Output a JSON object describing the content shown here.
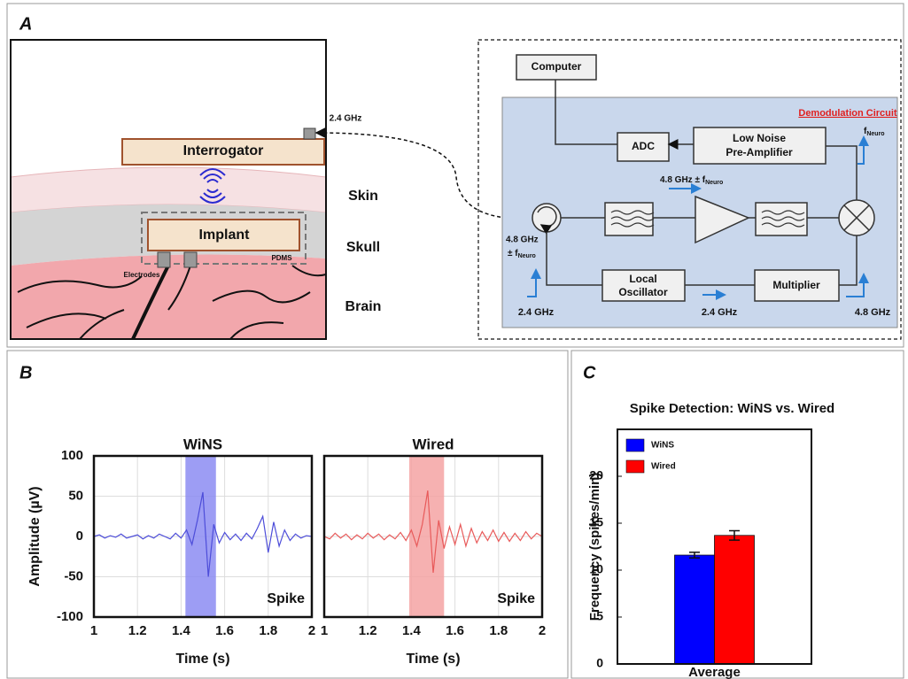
{
  "panels": [
    "A",
    "B",
    "C"
  ],
  "diagram": {
    "anatomy": {
      "interrogator": "Interrogator",
      "skin": "Skin",
      "skull": "Skull",
      "brain": "Brain",
      "implant": "Implant",
      "pdms": "PDMS",
      "electrodes": "Electrodes",
      "link_freq": "2.4 GHz"
    },
    "circuit": {
      "computer": "Computer",
      "title": "Demodulation Circuit",
      "adc": "ADC",
      "lna": [
        "Low Noise",
        "Pre-Amplifier"
      ],
      "local_oscillator": [
        "Local",
        "Oscillator"
      ],
      "multiplier": "Multiplier",
      "f_neuro": {
        "main": "f",
        "sub": "Neuro"
      },
      "mid_freq": {
        "main": "4.8 GHz ± f",
        "sub": "Neuro"
      },
      "port_freq": {
        "line1": "4.8 GHz",
        "main": "± f",
        "sub": "Neuro"
      },
      "lo_in": "2.4 GHz",
      "lo_out": "2.4 GHz",
      "mult_out": "4.8 GHz"
    }
  },
  "chart_data": [
    {
      "type": "line",
      "title": "WiNS",
      "ylabel": "Amplitude (µV)",
      "xlabel": "Time (s)",
      "annotation": "Spike",
      "x": [
        1,
        1.025,
        1.05,
        1.075,
        1.1,
        1.125,
        1.15,
        1.175,
        1.2,
        1.225,
        1.25,
        1.275,
        1.3,
        1.325,
        1.35,
        1.375,
        1.4,
        1.425,
        1.45,
        1.475,
        1.5,
        1.525,
        1.55,
        1.575,
        1.6,
        1.625,
        1.65,
        1.675,
        1.7,
        1.725,
        1.75,
        1.775,
        1.8,
        1.825,
        1.85,
        1.875,
        1.9,
        1.925,
        1.95,
        1.975,
        2
      ],
      "series": [
        {
          "name": "WiNS",
          "color": "#4d4dd9",
          "values": [
            0,
            2,
            -2,
            1,
            -1,
            3,
            -2,
            0,
            2,
            -3,
            1,
            -2,
            3,
            0,
            -3,
            4,
            -2,
            8,
            -10,
            20,
            55,
            -50,
            15,
            -8,
            5,
            -4,
            3,
            -5,
            4,
            -3,
            10,
            25,
            -20,
            18,
            -12,
            8,
            -5,
            3,
            -2,
            1,
            0
          ]
        }
      ],
      "highlight": [
        1.42,
        1.56
      ],
      "highlight_color": "#8c8cf2",
      "xlim": [
        1,
        2
      ],
      "xticks": [
        1,
        1.2,
        1.4,
        1.6,
        1.8,
        2
      ],
      "ylim": [
        -100,
        100
      ],
      "yticks": [
        -100,
        -50,
        0,
        50,
        100
      ],
      "show_ytick_labels": true,
      "grid": true
    },
    {
      "type": "line",
      "title": "Wired",
      "xlabel": "Time (s)",
      "annotation": "Spike",
      "x": [
        1,
        1.025,
        1.05,
        1.075,
        1.1,
        1.125,
        1.15,
        1.175,
        1.2,
        1.225,
        1.25,
        1.275,
        1.3,
        1.325,
        1.35,
        1.375,
        1.4,
        1.425,
        1.45,
        1.475,
        1.5,
        1.525,
        1.55,
        1.575,
        1.6,
        1.625,
        1.65,
        1.675,
        1.7,
        1.725,
        1.75,
        1.775,
        1.8,
        1.825,
        1.85,
        1.875,
        1.9,
        1.925,
        1.95,
        1.975,
        2
      ],
      "series": [
        {
          "name": "Wired",
          "color": "#e85a5a",
          "values": [
            0,
            -3,
            4,
            -2,
            3,
            -4,
            2,
            -3,
            4,
            -2,
            3,
            -4,
            2,
            -3,
            5,
            -5,
            8,
            -12,
            15,
            57,
            -45,
            20,
            -15,
            12,
            -10,
            15,
            -12,
            10,
            -8,
            6,
            -5,
            8,
            -6,
            5,
            -6,
            4,
            -5,
            6,
            -3,
            4,
            0
          ]
        }
      ],
      "highlight": [
        1.39,
        1.55
      ],
      "highlight_color": "#f4a3a3",
      "xlim": [
        1,
        2
      ],
      "xticks": [
        1,
        1.2,
        1.4,
        1.6,
        1.8,
        2
      ],
      "ylim": [
        -100,
        100
      ],
      "yticks": [
        -100,
        -50,
        0,
        50,
        100
      ],
      "show_ytick_labels": false,
      "grid": true
    },
    {
      "type": "bar",
      "title": "Spike Detection: WiNS vs. Wired",
      "ylabel": "Frequency (spikes/min)",
      "categories": [
        "Average"
      ],
      "series": [
        {
          "name": "WiNS",
          "color": "#0000ff",
          "values": [
            11.6
          ],
          "errors": [
            0.3
          ]
        },
        {
          "name": "Wired",
          "color": "#ff0000",
          "values": [
            13.7
          ],
          "errors": [
            0.5
          ]
        }
      ],
      "ylim": [
        0,
        25
      ],
      "yticks": [
        0,
        5,
        10,
        15,
        20
      ],
      "legend": "upper left",
      "grid": false
    }
  ]
}
